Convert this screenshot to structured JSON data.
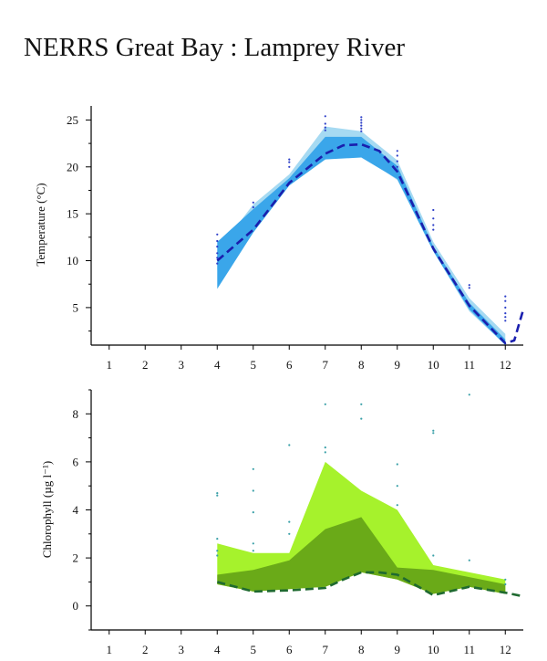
{
  "title": "NERRS Great Bay : Lamprey River",
  "colors": {
    "temp_outer": "#a6daf2",
    "temp_inner": "#3aa6ea",
    "temp_median": "#1a1fae",
    "temp_points": "#2d3fc8",
    "chl_outer": "#a6f22c",
    "chl_inner": "#6aaa18",
    "chl_median": "#1f6a30",
    "chl_points": "#3aa0a8"
  },
  "chart_data": [
    {
      "type": "area",
      "ylabel": "Temperature (°C)",
      "xlim": [
        0.5,
        12.5
      ],
      "ylim": [
        1,
        26.5
      ],
      "xticks": [
        1,
        2,
        3,
        4,
        5,
        6,
        7,
        8,
        9,
        10,
        11,
        12
      ],
      "yticks": [
        5,
        10,
        15,
        20,
        25
      ],
      "x": [
        4,
        5,
        6,
        7,
        8,
        9,
        10,
        11,
        12
      ],
      "outer_band": {
        "upper": [
          11,
          16,
          19.2,
          24.3,
          23.8,
          20.7,
          12,
          6,
          2.2
        ],
        "lower": [
          9,
          14,
          18.2,
          20.8,
          21.3,
          18.6,
          11,
          4.6,
          1
        ]
      },
      "inner_band": {
        "upper": [
          12,
          15.5,
          18.8,
          23.2,
          23.2,
          20.1,
          11.5,
          5.5,
          1.6
        ],
        "lower": [
          7,
          13,
          18,
          20.8,
          21,
          18.7,
          11,
          4.8,
          1
        ]
      },
      "median": {
        "x": [
          4,
          5,
          6,
          7,
          7.5,
          8,
          8.5,
          9,
          10,
          11,
          12,
          12.25,
          12.5
        ],
        "y": [
          10,
          13.3,
          18.3,
          21.4,
          22.3,
          22.4,
          21.7,
          19.5,
          11.3,
          5.2,
          1.2,
          1.5,
          4.8
        ]
      },
      "points": [
        [
          4,
          9.7
        ],
        [
          4,
          10.3
        ],
        [
          4,
          10.8
        ],
        [
          4,
          11.5
        ],
        [
          4,
          12.1
        ],
        [
          4,
          12.8
        ],
        [
          5,
          15.7
        ],
        [
          5,
          16.2
        ],
        [
          6,
          20
        ],
        [
          6,
          20.5
        ],
        [
          6,
          20.8
        ],
        [
          7,
          23.9
        ],
        [
          7,
          24.2
        ],
        [
          7,
          24.6
        ],
        [
          7,
          25.4
        ],
        [
          8,
          23.8
        ],
        [
          8,
          24.1
        ],
        [
          8,
          24.4
        ],
        [
          8,
          24.7
        ],
        [
          8,
          25
        ],
        [
          8,
          25.3
        ],
        [
          9,
          20
        ],
        [
          9,
          20.6
        ],
        [
          9,
          21.2
        ],
        [
          9,
          21.7
        ],
        [
          10,
          13.3
        ],
        [
          10,
          13.8
        ],
        [
          10,
          14.5
        ],
        [
          10,
          15.4
        ],
        [
          11,
          7.1
        ],
        [
          11,
          7.4
        ],
        [
          12,
          3.6
        ],
        [
          12,
          4
        ],
        [
          12,
          4.4
        ],
        [
          12,
          5
        ],
        [
          12,
          5.7
        ],
        [
          12,
          6.2
        ]
      ]
    },
    {
      "type": "area",
      "ylabel": "Chlorophyll (µg l⁻¹)",
      "xlim": [
        0.5,
        12.5
      ],
      "ylim": [
        -1,
        9
      ],
      "xticks": [
        1,
        2,
        3,
        4,
        5,
        6,
        7,
        8,
        9,
        10,
        11,
        12
      ],
      "yticks": [
        0,
        2,
        4,
        6,
        8
      ],
      "x": [
        4,
        5,
        6,
        7,
        8,
        9,
        10,
        11,
        12
      ],
      "outer_band": {
        "upper": [
          2.6,
          2.2,
          2.2,
          6,
          4.8,
          4,
          1.7,
          1.4,
          1.1
        ],
        "lower": [
          0.9,
          0.6,
          0.7,
          0.8,
          1.4,
          1.1,
          0.5,
          0.8,
          0.5
        ]
      },
      "inner_band": {
        "upper": [
          1.3,
          1.5,
          1.9,
          3.2,
          3.7,
          1.6,
          1.5,
          1.2,
          0.9
        ],
        "lower": [
          0.9,
          0.6,
          0.7,
          0.8,
          1.4,
          1.1,
          0.5,
          0.8,
          0.5
        ]
      },
      "median": {
        "x": [
          4,
          5,
          6,
          7,
          7.5,
          8,
          8.5,
          9,
          10,
          11,
          12,
          12.5
        ],
        "y": [
          1,
          0.6,
          0.65,
          0.75,
          1.1,
          1.4,
          1.4,
          1.3,
          0.45,
          0.8,
          0.55,
          0.4
        ]
      },
      "points": [
        [
          4,
          2.1
        ],
        [
          4,
          2.3
        ],
        [
          4,
          2.8
        ],
        [
          4,
          4.6
        ],
        [
          4,
          4.7
        ],
        [
          5,
          2.3
        ],
        [
          5,
          2.6
        ],
        [
          5,
          3.9
        ],
        [
          5,
          4.8
        ],
        [
          5,
          5.7
        ],
        [
          6,
          3
        ],
        [
          6,
          3.5
        ],
        [
          6,
          6.7
        ],
        [
          7,
          6.4
        ],
        [
          7,
          6.6
        ],
        [
          7,
          8.4
        ],
        [
          8,
          7.8
        ],
        [
          8,
          8.4
        ],
        [
          9,
          4.2
        ],
        [
          9,
          5
        ],
        [
          9,
          5.9
        ],
        [
          10,
          2.1
        ],
        [
          10,
          7.2
        ],
        [
          10,
          7.3
        ],
        [
          11,
          1.9
        ],
        [
          11,
          8.8
        ],
        [
          12,
          0.9
        ],
        [
          12,
          1.1
        ]
      ]
    }
  ]
}
